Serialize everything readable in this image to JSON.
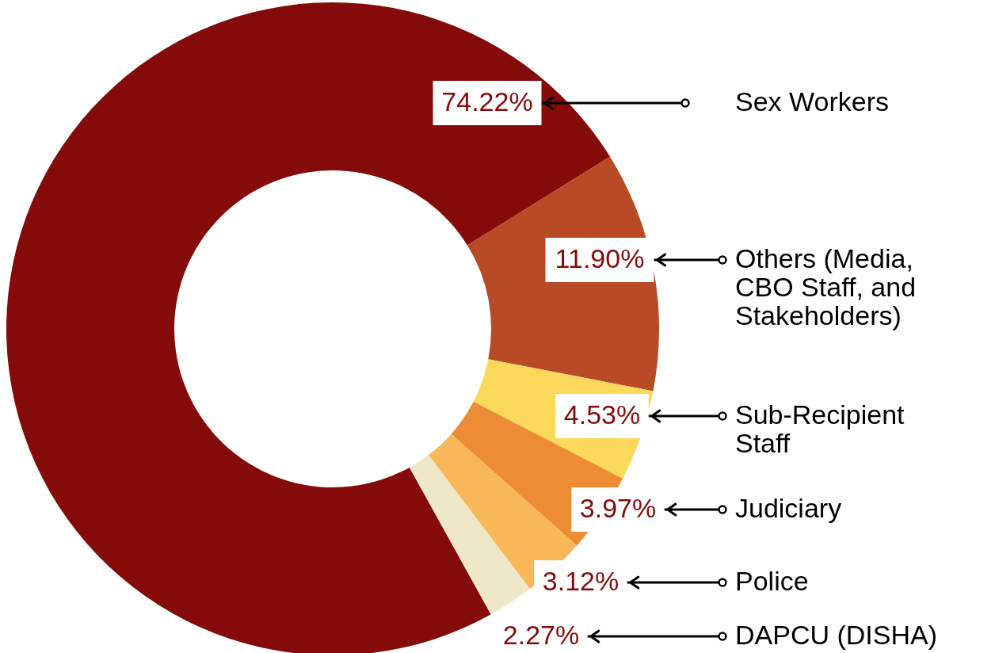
{
  "chart_data": {
    "type": "donut",
    "categories": [
      "Sex Workers",
      "Others (Media, CBO Staff, and Stakeholders)",
      "Sub-Recipient Staff",
      "Judiciary",
      "Police",
      "DAPCU (DISHA)"
    ],
    "values": [
      74.22,
      11.9,
      4.53,
      3.97,
      3.12,
      2.27
    ],
    "value_labels": [
      "74.22%",
      "11.90%",
      "4.53%",
      "3.97%",
      "3.12%",
      "2.27%"
    ],
    "colors": [
      "#850b0b",
      "#b84a26",
      "#fcd95a",
      "#ee8c35",
      "#f8b85a",
      "#efe8c8"
    ]
  }
}
